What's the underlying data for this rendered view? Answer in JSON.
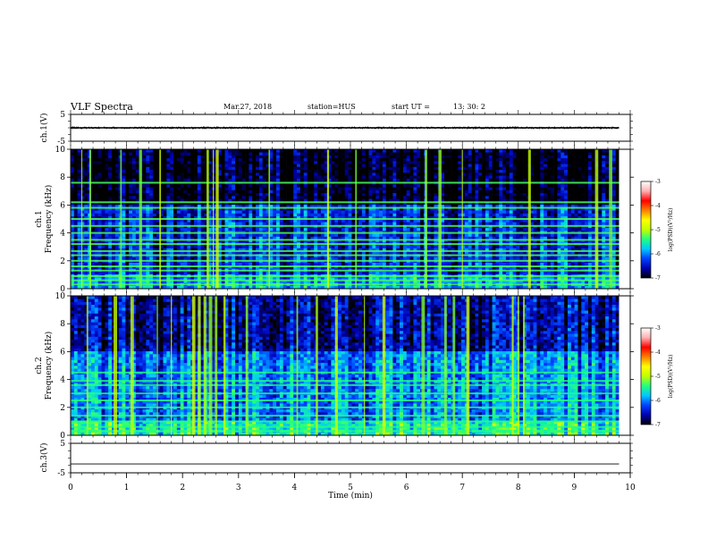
{
  "header": {
    "title": "VLF Spectra",
    "date": "Mar.27, 2018",
    "station": "station=HUS",
    "start_label": "start  UT  =",
    "start_time": "13: 30: 2"
  },
  "chart_data": [
    {
      "type": "line",
      "panel": "ch1-waveform",
      "ylabel": "ch.1(V)",
      "x": [
        0,
        1,
        2,
        3,
        4,
        5,
        6,
        7,
        8,
        9,
        9.8
      ],
      "y": [
        0,
        0,
        0,
        0,
        0,
        0,
        0,
        0,
        0,
        0,
        0
      ],
      "amplitude": 0.35,
      "xlim": [
        0,
        10
      ],
      "ylim": [
        -5,
        5
      ],
      "y_ticks": [
        "5",
        "-5"
      ],
      "data_end_min": 9.8,
      "color": "#000000"
    },
    {
      "type": "heatmap",
      "panel": "ch1-spectrogram",
      "ylabel": [
        "ch.1",
        "Frequency  (kHz)"
      ],
      "xlim": [
        0,
        10
      ],
      "ylim": [
        0,
        10
      ],
      "y_ticks": [
        0,
        2,
        4,
        6,
        8,
        10
      ],
      "data_end_min": 9.8,
      "background_level": -6.4,
      "line_features_khz": [
        0.3,
        0.6,
        0.9,
        1.3,
        1.6,
        2.0,
        2.4,
        2.7,
        3.2,
        3.5,
        4.0,
        4.5,
        5.0,
        5.8,
        6.2,
        7.6
      ],
      "line_level": -5.3,
      "broadband_bursts_min": [
        0.2,
        0.35,
        0.9,
        1.25,
        1.6,
        2.45,
        2.55,
        2.62,
        3.55,
        4.6,
        5.1,
        6.35,
        6.6,
        7.0,
        8.2,
        9.4,
        9.65
      ],
      "burst_level": -5.0,
      "colorbar": {
        "label": "log(PSD)(V²/Hz)",
        "min": -7,
        "max": -3,
        "ticks": [
          "-3",
          "-4",
          "-5",
          "-6",
          "-7"
        ],
        "colors": [
          "#000000",
          "#0000b0",
          "#0040ff",
          "#00c8ff",
          "#20ff80",
          "#c0ff00",
          "#ffff00",
          "#ff8000",
          "#ff0000",
          "#ffb0b0",
          "#ffffff"
        ]
      }
    },
    {
      "type": "heatmap",
      "panel": "ch2-spectrogram",
      "ylabel": [
        "ch.2",
        "Frequency  (kHz)"
      ],
      "xlim": [
        0,
        10
      ],
      "ylim": [
        0,
        10
      ],
      "y_ticks": [
        0,
        2,
        4,
        6,
        8,
        10
      ],
      "data_end_min": 9.8,
      "background_level": -6.0,
      "line_features_khz": [
        0.3,
        0.6,
        1.0,
        1.4,
        2.0,
        2.5,
        3.0,
        3.6,
        3.9,
        4.5
      ],
      "line_level": -5.4,
      "broadband_bursts_min": [
        0.3,
        0.8,
        1.1,
        1.55,
        1.8,
        2.2,
        2.3,
        2.4,
        2.5,
        2.6,
        2.75,
        3.15,
        4.05,
        4.4,
        4.75,
        5.25,
        5.6,
        6.3,
        6.7,
        6.85,
        7.1,
        7.9,
        8.0,
        8.1
      ],
      "burst_level": -5.0,
      "colorbar": {
        "label": "log(PSD)(V²/Hz)",
        "min": -7,
        "max": -3,
        "ticks": [
          "-3",
          "-4",
          "-5",
          "-6",
          "-7"
        ],
        "colors": [
          "#000000",
          "#0000b0",
          "#0040ff",
          "#00c8ff",
          "#20ff80",
          "#c0ff00",
          "#ffff00",
          "#ff8000",
          "#ff0000",
          "#ffb0b0",
          "#ffffff"
        ]
      }
    },
    {
      "type": "line",
      "panel": "ch3-waveform",
      "ylabel": "ch.3(V)",
      "x": [
        0,
        9.8
      ],
      "y": [
        -2,
        -2
      ],
      "xlim": [
        0,
        10
      ],
      "ylim": [
        -5,
        5
      ],
      "y_ticks": [
        "5",
        "-5"
      ],
      "xlabel": "Time  (min)",
      "x_ticks": [
        "0",
        "1",
        "2",
        "3",
        "4",
        "5",
        "6",
        "7",
        "8",
        "9",
        "10"
      ],
      "color": "#000000"
    }
  ]
}
